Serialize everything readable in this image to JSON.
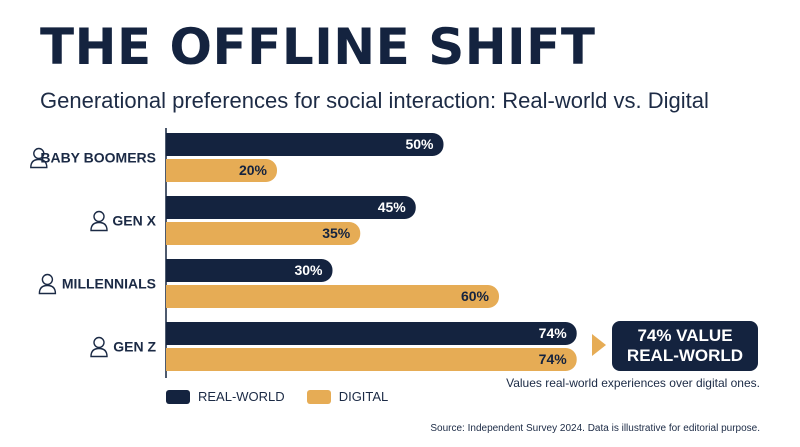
{
  "title": "THE OFFLINE SHIFT",
  "subtitle": "Generational preferences for social interaction: Real-world vs. Digital",
  "colors": {
    "real_world": "#14233f",
    "digital": "#e6ac55",
    "axis": "#14233f"
  },
  "chart_data": {
    "type": "bar",
    "orientation": "horizontal",
    "categories": [
      "BABY BOOMERS",
      "GEN X",
      "MILLENNIALS",
      "GEN Z"
    ],
    "category_icons": [
      "elder-person-icon",
      "woman-person-icon",
      "man-person-icon",
      "young-person-icon"
    ],
    "series": [
      {
        "name": "REAL-WORLD",
        "values": [
          50,
          45,
          30,
          74
        ]
      },
      {
        "name": "DIGITAL",
        "values": [
          20,
          35,
          60,
          74
        ]
      }
    ],
    "value_suffix": "%",
    "xlim": [
      0,
      100
    ],
    "grid": false,
    "legend_position": "bottom-left"
  },
  "callout": {
    "line1": "74% VALUE",
    "line2": "REAL-WORLD"
  },
  "note": "Values real-world experiences over digital ones.",
  "legend": {
    "real_world": "REAL-WORLD",
    "digital": "DIGITAL"
  },
  "source": "Source: Independent Survey 2024. Data is illustrative for editorial purpose."
}
